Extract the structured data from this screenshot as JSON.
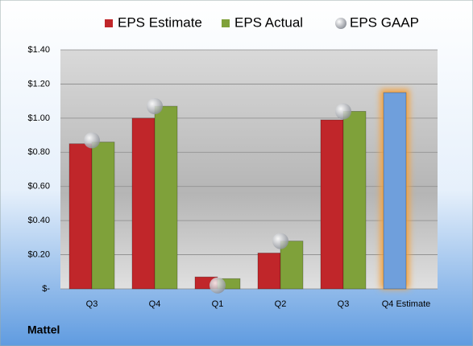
{
  "chart_data": {
    "type": "bar",
    "categories": [
      "Q3",
      "Q4",
      "Q1",
      "Q2",
      "Q3",
      "Q4 Estimate"
    ],
    "series": [
      {
        "name": "EPS Estimate",
        "color": "#c0262a",
        "point_colors": [
          "#c0262a",
          "#c0262a",
          "#c0262a",
          "#c0262a",
          "#c0262a",
          "#6f9fdc"
        ],
        "values": [
          0.85,
          1.0,
          0.07,
          0.21,
          0.99,
          1.15
        ]
      },
      {
        "name": "EPS Actual",
        "color": "#7fa13a",
        "values": [
          0.86,
          1.07,
          0.06,
          0.28,
          1.04,
          null
        ]
      },
      {
        "name": "EPS GAAP",
        "color": "#b8bcc4",
        "marker": "circle",
        "values": [
          0.87,
          1.07,
          0.02,
          0.28,
          1.04,
          null
        ]
      }
    ],
    "ylim": [
      0,
      1.4
    ],
    "yticks": [
      {
        "value": 0,
        "label": "$-"
      },
      {
        "value": 0.2,
        "label": "$0.20"
      },
      {
        "value": 0.4,
        "label": "$0.40"
      },
      {
        "value": 0.6,
        "label": "$0.60"
      },
      {
        "value": 0.8,
        "label": "$0.80"
      },
      {
        "value": 1.0,
        "label": "$1.00"
      },
      {
        "value": 1.2,
        "label": "$1.20"
      },
      {
        "value": 1.4,
        "label": "$1.40"
      }
    ],
    "grid": true,
    "footer": "Mattel"
  }
}
